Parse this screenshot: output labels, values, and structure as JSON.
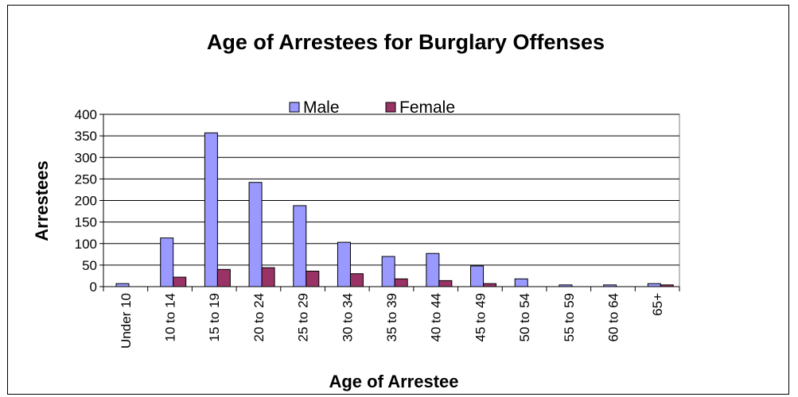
{
  "chart_data": {
    "type": "bar",
    "title": "Age of Arrestees for Burglary Offenses",
    "xlabel": "Age of Arrestee",
    "ylabel": "Arrestees",
    "categories": [
      "Under 10",
      "10 to 14",
      "15 to 19",
      "20 to 24",
      "25 to 29",
      "30 to 34",
      "35 to 39",
      "40 to 44",
      "45 to 49",
      "50 to 54",
      "55 to 59",
      "60 to 64",
      "65+"
    ],
    "series": [
      {
        "name": "Male",
        "color": "#9999ff",
        "values": [
          7,
          113,
          357,
          242,
          188,
          103,
          70,
          77,
          48,
          18,
          4,
          4,
          7
        ]
      },
      {
        "name": "Female",
        "color": "#993366",
        "values": [
          0,
          22,
          40,
          44,
          36,
          30,
          18,
          14,
          7,
          0,
          0,
          0,
          4
        ]
      }
    ],
    "ylim": [
      0,
      400
    ],
    "yticks": [
      0,
      50,
      100,
      150,
      200,
      250,
      300,
      350,
      400
    ],
    "grid": true,
    "legend_position": "top-center",
    "plot_background": "#ffffff"
  }
}
